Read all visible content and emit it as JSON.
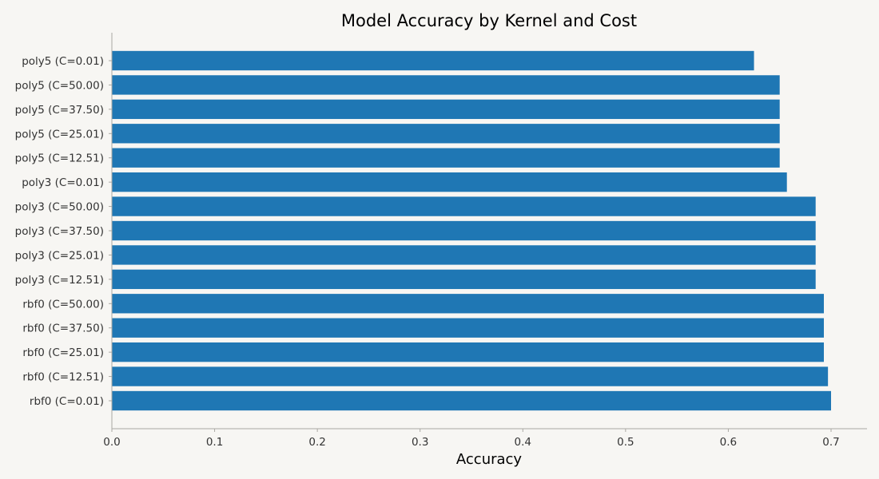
{
  "chart_data": {
    "type": "bar",
    "orientation": "horizontal",
    "title": "Model Accuracy by Kernel and Cost",
    "xlabel": "Accuracy",
    "ylabel": "",
    "xlim": [
      0.0,
      0.735
    ],
    "xticks": [
      0.0,
      0.1,
      0.2,
      0.3,
      0.4,
      0.5,
      0.6,
      0.7
    ],
    "xtick_labels": [
      "0.0",
      "0.1",
      "0.2",
      "0.3",
      "0.4",
      "0.5",
      "0.6",
      "0.7"
    ],
    "grid": false,
    "bar_color": "#1f77b4",
    "categories": [
      "rbf0 (C=0.01)",
      "rbf0 (C=12.51)",
      "rbf0 (C=25.01)",
      "rbf0 (C=37.50)",
      "rbf0 (C=50.00)",
      "poly3 (C=12.51)",
      "poly3 (C=25.01)",
      "poly3 (C=37.50)",
      "poly3 (C=50.00)",
      "poly3 (C=0.01)",
      "poly5 (C=12.51)",
      "poly5 (C=25.01)",
      "poly5 (C=37.50)",
      "poly5 (C=50.00)",
      "poly5 (C=0.01)"
    ],
    "values": [
      0.7,
      0.697,
      0.693,
      0.693,
      0.693,
      0.685,
      0.685,
      0.685,
      0.685,
      0.657,
      0.65,
      0.65,
      0.65,
      0.65,
      0.625
    ]
  },
  "colors": {
    "background": "#f7f6f3",
    "bar": "#1f77b4",
    "spine": "#aaa8a3"
  }
}
